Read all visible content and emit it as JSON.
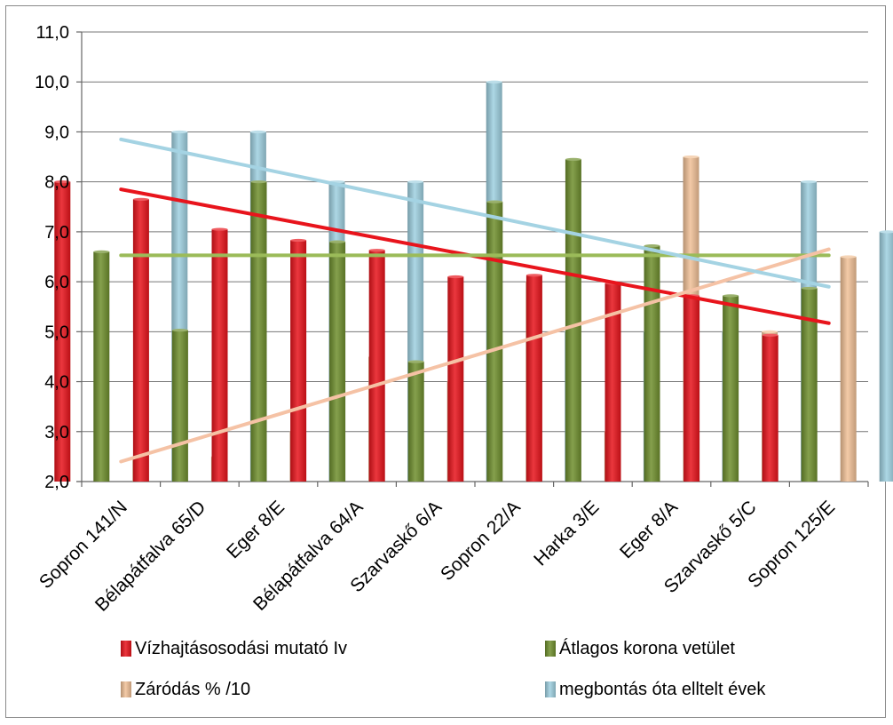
{
  "chart_data": {
    "type": "bar",
    "categories": [
      "Sopron 141/N",
      "Bélapátfalva 65/D",
      "Eger 8/E",
      "Bélapátfalva 64/A",
      "Szarvaskő 6/A",
      "Sopron 22/A",
      "Harka 3/E",
      "Eger 8/A",
      "Szarvaskő 5/C",
      "Sopron 125/E"
    ],
    "ylim": [
      2.0,
      11.0
    ],
    "yticks": [
      "2,0",
      "3,0",
      "4,0",
      "5,0",
      "6,0",
      "7,0",
      "8,0",
      "9,0",
      "10,0",
      "11,0"
    ],
    "grid": true,
    "legend_position": "bottom",
    "series": [
      {
        "name": "Vízhajtásosodási mutató Iv",
        "color": "#e8141c",
        "values": [
          8.0,
          7.65,
          7.05,
          6.83,
          6.63,
          6.1,
          6.13,
          5.97,
          5.72,
          4.93
        ]
      },
      {
        "name": "Átlagos korona vetület",
        "color": "#6f8f2e",
        "values": [
          6.6,
          5.03,
          8.0,
          6.8,
          4.4,
          7.6,
          8.45,
          6.72,
          5.72,
          5.87
        ]
      },
      {
        "name": "Záródás % /10",
        "color": "#f1c197",
        "values": [
          2.5,
          2.5,
          3.0,
          4.5,
          4.0,
          6.0,
          3.0,
          8.5,
          5.0,
          6.5
        ]
      },
      {
        "name": "megbontás óta elltelt évek",
        "color": "#9fd0e0",
        "values": [
          9.0,
          9.0,
          8.0,
          8.0,
          10.0,
          5.0,
          5.0,
          5.0,
          8.0,
          7.0
        ]
      }
    ],
    "trendlines": [
      {
        "series": "Vízhajtásosodási mutató Iv",
        "color": "#e8141c",
        "start": 7.85,
        "end": 5.17
      },
      {
        "series": "Átlagos korona vetület",
        "color": "#9bbb59",
        "start": 6.53,
        "end": 6.53
      },
      {
        "series": "Záródás % /10",
        "color": "#f5c2a5",
        "start": 2.4,
        "end": 6.65
      },
      {
        "series": "megbontás óta elltelt évek",
        "color": "#a4d3e3",
        "start": 8.85,
        "end": 5.9
      }
    ]
  }
}
